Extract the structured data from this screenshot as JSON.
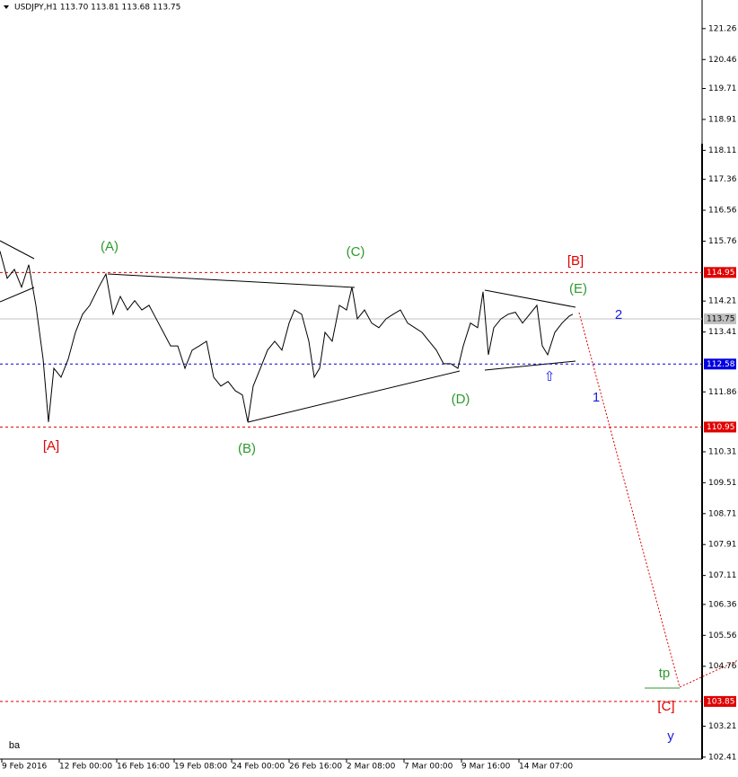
{
  "chart_data": {
    "type": "line",
    "title": "USDJPY,H1  113.70 113.81 113.68 113.75",
    "xlim": [
      0,
      782
    ],
    "ylim": [
      102.36,
      122.0
    ],
    "xticks": [
      {
        "value": 2,
        "label": "9 Feb 2016"
      },
      {
        "value": 66,
        "label": "12 Feb 00:00"
      },
      {
        "value": 130,
        "label": "16 Feb 16:00"
      },
      {
        "value": 194,
        "label": "19 Feb 08:00"
      },
      {
        "value": 258,
        "label": "24 Feb 00:00"
      },
      {
        "value": 322,
        "label": "26 Feb 16:00"
      },
      {
        "value": 386,
        "label": "2 Mar 08:00"
      },
      {
        "value": 450,
        "label": "7 Mar 00:00"
      },
      {
        "value": 514,
        "label": "9 Mar 16:00"
      },
      {
        "value": 578,
        "label": "14 Mar 07:00"
      }
    ],
    "yticks": [
      121.26,
      120.46,
      119.71,
      118.91,
      118.11,
      117.36,
      116.56,
      115.76,
      114.21,
      113.41,
      111.86,
      110.31,
      109.51,
      108.71,
      107.91,
      107.11,
      106.36,
      105.56,
      104.76,
      103.21,
      102.41
    ],
    "levels": [
      {
        "value": 114.95,
        "color": "#e00000",
        "style": "dashed"
      },
      {
        "value": 113.75,
        "color": "#c0c0c0",
        "style": "solid"
      },
      {
        "value": 112.58,
        "color": "#0000e0",
        "style": "dashed"
      },
      {
        "value": 110.95,
        "color": "#e00000",
        "style": "dashed"
      },
      {
        "value": 103.85,
        "color": "#e00000",
        "style": "dashed"
      }
    ],
    "series": [
      {
        "color": "#000000",
        "x": [
          0,
          8,
          16,
          24,
          32,
          40,
          48,
          54,
          60,
          68,
          76,
          84,
          92,
          100,
          110,
          118,
          126,
          134,
          142,
          150,
          158,
          166,
          174,
          182,
          190,
          198,
          206,
          214,
          222,
          230,
          238,
          246,
          254,
          262,
          270,
          276,
          282,
          290,
          298,
          306,
          314,
          322,
          328,
          336,
          344,
          350,
          356,
          362,
          370,
          378,
          386,
          392,
          398,
          406,
          414,
          422,
          430,
          438,
          446,
          454,
          462,
          470,
          478,
          486,
          494,
          502,
          510,
          516,
          524,
          532,
          538,
          544,
          550,
          558,
          566,
          574,
          582,
          590,
          598,
          604,
          610,
          618,
          626,
          634,
          638
        ],
        "values": [
          115.5,
          114.8,
          115.03,
          114.57,
          115.15,
          114.1,
          112.71,
          111.08,
          112.47,
          112.24,
          112.71,
          113.4,
          113.87,
          114.1,
          114.57,
          114.91,
          113.87,
          114.33,
          113.98,
          114.22,
          113.98,
          114.1,
          113.75,
          113.4,
          113.05,
          113.05,
          112.47,
          112.94,
          113.05,
          113.17,
          112.24,
          112.01,
          112.13,
          111.89,
          111.78,
          111.08,
          112.01,
          112.47,
          112.94,
          113.17,
          112.94,
          113.64,
          113.98,
          113.87,
          113.17,
          112.24,
          112.47,
          113.4,
          113.17,
          114.1,
          113.98,
          114.57,
          113.75,
          113.98,
          113.64,
          113.52,
          113.75,
          113.87,
          113.98,
          113.64,
          113.52,
          113.4,
          113.17,
          112.94,
          112.59,
          112.59,
          112.47,
          113.05,
          113.64,
          113.52,
          114.45,
          112.82,
          113.52,
          113.75,
          113.87,
          113.92,
          113.64,
          113.87,
          114.1,
          113.05,
          112.82,
          113.4,
          113.64,
          113.82,
          113.87
        ]
      }
    ],
    "annotations": [
      {
        "text": "(A)",
        "color": "#2e9a2e"
      },
      {
        "text": "(B)",
        "color": "#2e9a2e"
      },
      {
        "text": "(C)",
        "color": "#2e9a2e"
      },
      {
        "text": "(D)",
        "color": "#2e9a2e"
      },
      {
        "text": "(E)",
        "color": "#2e9a2e"
      },
      {
        "text": "[A]",
        "color": "#e00000"
      },
      {
        "text": "[B]",
        "color": "#e00000"
      },
      {
        "text": "[C]",
        "color": "#e00000"
      },
      {
        "text": "1",
        "color": "#1a1ae0"
      },
      {
        "text": "2",
        "color": "#1a1ae0"
      },
      {
        "text": "y",
        "color": "#1a1ae0"
      },
      {
        "text": "tp",
        "color": "#2e9a2e"
      },
      {
        "text": "⇧",
        "color": "#1a1ae0"
      },
      {
        "text": "ba",
        "color": "#000000"
      }
    ]
  }
}
